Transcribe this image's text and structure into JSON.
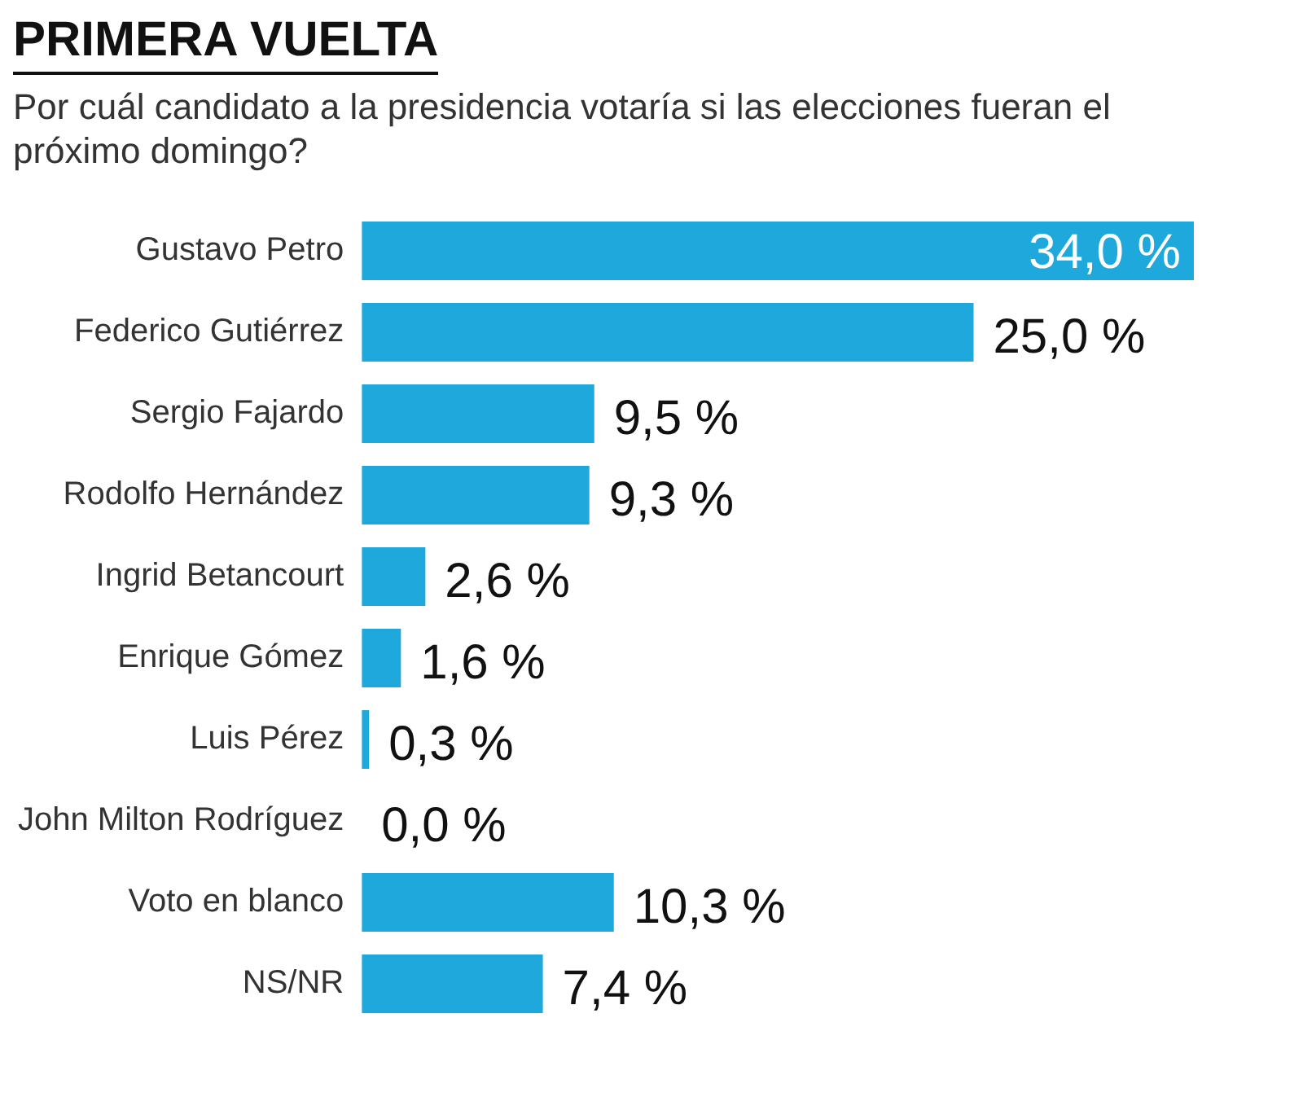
{
  "chart_data": {
    "type": "bar",
    "orientation": "horizontal",
    "title": "PRIMERA VUELTA",
    "subtitle": "Por cuál candidato a la presidencia votaría si las elecciones fueran el próximo domingo?",
    "categories": [
      "Gustavo Petro",
      "Federico Gutiérrez",
      "Sergio Fajardo",
      "Rodolfo Hernández",
      "Ingrid Betancourt",
      "Enrique Gómez",
      "Luis Pérez",
      "John Milton Rodríguez",
      "Voto en blanco",
      "NS/NR"
    ],
    "values": [
      34.0,
      25.0,
      9.5,
      9.3,
      2.6,
      1.6,
      0.3,
      0.0,
      10.3,
      7.4
    ],
    "value_labels": [
      "34,0 %",
      "25,0 %",
      "9,5 %",
      "9,3 %",
      "2,6 %",
      "1,6 %",
      "0,3 %",
      "0,0 %",
      "10,3 %",
      "7,4 %"
    ],
    "color": "#1ea8dc"
  }
}
